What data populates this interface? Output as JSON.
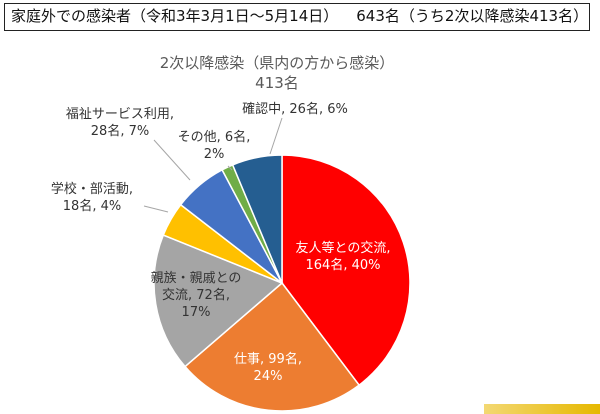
{
  "header": {
    "title": "家庭外での感染者（令和3年3月1日～5月14日）",
    "total": "643名（うち2次以降感染413名）"
  },
  "chart_data": {
    "type": "pie",
    "title": "2次以降感染（県内の方から感染）",
    "subtitle": "413名",
    "slices": [
      {
        "label": "友人等との交流",
        "count": "164名",
        "percent": "40%",
        "value": 164,
        "color": "#ff0000"
      },
      {
        "label": "仕事",
        "count": "99名",
        "percent": "24%",
        "value": 99,
        "color": "#ed7d31"
      },
      {
        "label": "親族・親戚との交流",
        "count": "72名",
        "percent": "17%",
        "value": 72,
        "color": "#a5a5a5"
      },
      {
        "label": "学校・部活動",
        "count": "18名",
        "percent": "4%",
        "value": 18,
        "color": "#ffc000"
      },
      {
        "label": "福祉サービス利用",
        "count": "28名",
        "percent": "7%",
        "value": 28,
        "color": "#4472c4"
      },
      {
        "label": "その他",
        "count": "6名",
        "percent": "2%",
        "value": 6,
        "color": "#70ad47"
      },
      {
        "label": "確認中",
        "count": "26名",
        "percent": "6%",
        "value": 26,
        "color": "#255e91"
      }
    ]
  }
}
